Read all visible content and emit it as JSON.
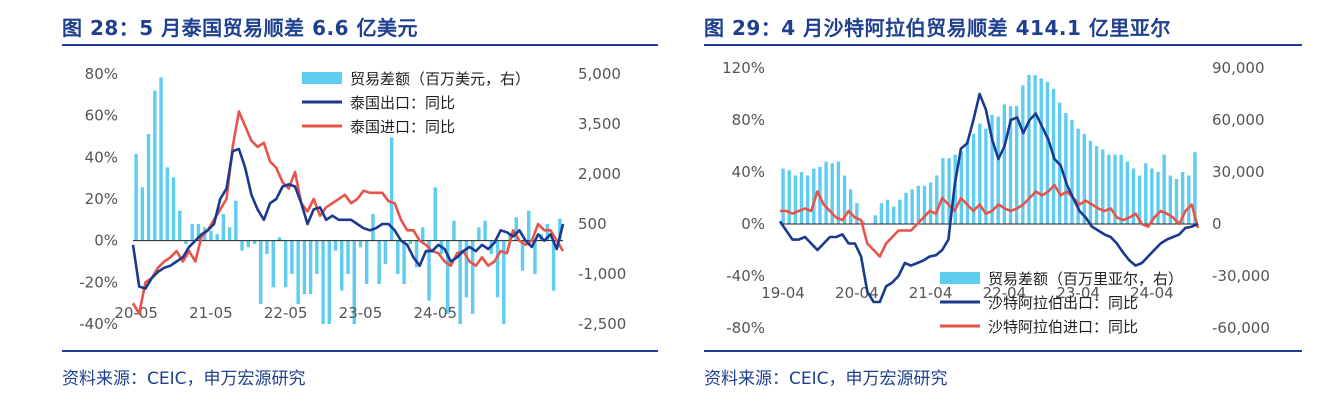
{
  "figures": [
    {
      "title": "图 28：5 月泰国贸易顺差 6.6 亿美元",
      "source": "资料来源：CEIC，申万宏源研究"
    },
    {
      "title": "图 29：4 月沙特阿拉伯贸易顺差 414.1 亿里亚尔",
      "source": "资料来源：CEIC，申万宏源研究"
    }
  ],
  "chart_data": [
    {
      "type": "bar",
      "x_tick_labels": [
        "20-05",
        "21-05",
        "22-05",
        "23-05",
        "24-05"
      ],
      "left_axis": {
        "ticks": [
          "80%",
          "60%",
          "40%",
          "20%",
          "0%",
          "-20%",
          "-40%"
        ],
        "range": [
          -40,
          80
        ]
      },
      "right_axis": {
        "ticks": [
          "5,000",
          "3,500",
          "2,000",
          "500",
          "-1,000",
          "-2,500"
        ],
        "range": [
          -2500,
          5000
        ]
      },
      "colors": {
        "bar": "#5fcdf0",
        "export": "#1a3a8f",
        "import": "#e8534a"
      },
      "series": [
        {
          "name": "贸易差额（百万美元，右）",
          "kind": "bar",
          "axis": "right",
          "values": [
            2600,
            1600,
            3200,
            4500,
            4900,
            2200,
            1900,
            900,
            -100,
            500,
            500,
            400,
            300,
            200,
            800,
            400,
            1200,
            -300,
            -200,
            -100,
            -1900,
            -400,
            -1400,
            100,
            -1400,
            -1000,
            -1900,
            -1600,
            -1600,
            -1000,
            -2500,
            -2500,
            -300,
            -1500,
            -1000,
            -2500,
            -200,
            -1300,
            800,
            -1300,
            -700,
            3100,
            -1000,
            -1300,
            -100,
            -800,
            400,
            -1800,
            1600,
            -400,
            -2200,
            600,
            -2500,
            -1700,
            -2200,
            400,
            600,
            -400,
            -1700,
            -2500,
            200,
            700,
            -900,
            900,
            -1000,
            200,
            500,
            -1500,
            660
          ]
        },
        {
          "name": "泰国出口：同比",
          "kind": "line",
          "axis": "left",
          "values": [
            -2,
            -22,
            -23,
            -18,
            -15,
            -13,
            -12,
            -10,
            -8,
            -3,
            0,
            3,
            5,
            8,
            20,
            25,
            43,
            44,
            35,
            22,
            15,
            10,
            18,
            20,
            26,
            27,
            26,
            18,
            8,
            15,
            16,
            10,
            12,
            10,
            10,
            10,
            8,
            6,
            5,
            6,
            8,
            8,
            5,
            0,
            -2,
            -8,
            -12,
            -5,
            -5,
            -2,
            -4,
            -10,
            -8,
            -5,
            -3,
            -5,
            -2,
            -4,
            -1,
            5,
            4,
            2,
            5,
            0,
            -3,
            3,
            0,
            3,
            -4,
            8
          ]
        },
        {
          "name": "泰国进口：同比",
          "kind": "line",
          "axis": "left",
          "values": [
            -30,
            -35,
            -20,
            -18,
            -13,
            -10,
            -8,
            -5,
            -10,
            -5,
            -10,
            2,
            5,
            10,
            15,
            20,
            45,
            62,
            55,
            48,
            45,
            47,
            38,
            35,
            28,
            25,
            33,
            18,
            14,
            20,
            12,
            16,
            18,
            20,
            22,
            18,
            20,
            24,
            23,
            23,
            23,
            19,
            18,
            10,
            5,
            5,
            0,
            -2,
            -5,
            -6,
            -10,
            -12,
            -6,
            -5,
            -10,
            -12,
            -8,
            -12,
            -10,
            -5,
            -6,
            5,
            0,
            -2,
            0,
            8,
            5,
            5,
            0,
            -5
          ]
        }
      ]
    },
    {
      "type": "bar",
      "x_tick_labels": [
        "19-04",
        "20-04",
        "21-04",
        "22-04",
        "23-04",
        "24-04"
      ],
      "left_axis": {
        "ticks": [
          "120%",
          "80%",
          "40%",
          "0%",
          "-40%",
          "-80%"
        ],
        "range": [
          -80,
          120
        ]
      },
      "right_axis": {
        "ticks": [
          "90,000",
          "60,000",
          "30,000",
          "0",
          "-30,000",
          "-60,000"
        ],
        "range": [
          -60000,
          90000
        ]
      },
      "colors": {
        "bar": "#5fcdf0",
        "export": "#1a3a8f",
        "import": "#e8534a"
      },
      "series": [
        {
          "name": "贸易差额（百万里亚尔，右）",
          "kind": "bar",
          "axis": "right",
          "values": [
            32000,
            31000,
            28000,
            30000,
            28000,
            32000,
            33000,
            36000,
            35000,
            36000,
            28000,
            20000,
            12000,
            2000,
            0,
            5000,
            12000,
            14000,
            10000,
            14000,
            18000,
            20000,
            22000,
            22000,
            24000,
            28000,
            38000,
            38000,
            40000,
            42000,
            48000,
            52000,
            58000,
            55000,
            63000,
            62000,
            69000,
            68000,
            68000,
            80000,
            86000,
            86000,
            84000,
            82000,
            78000,
            70000,
            64000,
            60000,
            55000,
            52000,
            48000,
            45000,
            43000,
            40000,
            40000,
            40000,
            36000,
            32000,
            28000,
            35000,
            32000,
            30000,
            40000,
            28000,
            26000,
            30000,
            28000,
            41400
          ]
        },
        {
          "name": "沙特阿拉伯出口：同比",
          "kind": "line",
          "axis": "left",
          "values": [
            2,
            -5,
            -12,
            -12,
            -10,
            -15,
            -20,
            -15,
            -10,
            -10,
            -8,
            -15,
            -15,
            -25,
            -52,
            -60,
            -60,
            -48,
            -45,
            -40,
            -30,
            -32,
            -30,
            -28,
            -25,
            -24,
            -20,
            -12,
            30,
            58,
            62,
            80,
            100,
            88,
            65,
            50,
            60,
            80,
            82,
            70,
            80,
            85,
            75,
            65,
            50,
            45,
            30,
            20,
            10,
            5,
            -2,
            -5,
            -8,
            -10,
            -15,
            -22,
            -28,
            -32,
            -30,
            -25,
            -20,
            -15,
            -12,
            -10,
            -8,
            -3,
            -2,
            0
          ]
        },
        {
          "name": "沙特阿拉伯进口：同比",
          "kind": "line",
          "axis": "left",
          "values": [
            10,
            10,
            8,
            10,
            12,
            10,
            25,
            15,
            10,
            5,
            3,
            10,
            5,
            3,
            -15,
            -20,
            -25,
            -15,
            -10,
            -5,
            -5,
            -5,
            0,
            5,
            10,
            8,
            20,
            15,
            10,
            20,
            15,
            10,
            15,
            8,
            10,
            15,
            12,
            10,
            12,
            15,
            20,
            25,
            22,
            25,
            30,
            22,
            25,
            20,
            15,
            18,
            15,
            12,
            10,
            12,
            5,
            3,
            5,
            8,
            0,
            -2,
            5,
            10,
            8,
            5,
            0,
            10,
            15,
            -3
          ]
        }
      ]
    }
  ]
}
